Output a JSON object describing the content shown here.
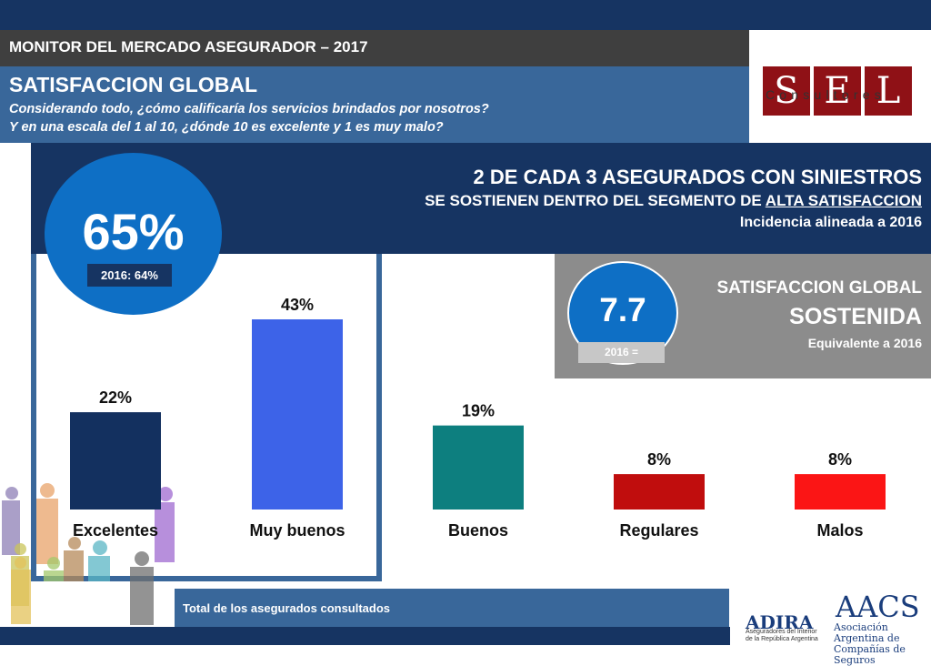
{
  "header": {
    "title": "MONITOR DEL MERCADO ASEGURADOR – 2017"
  },
  "title_bar": {
    "title": "SATISFACCION GLOBAL",
    "question_line1": "Considerando todo, ¿cómo calificaría los servicios brindados por nosotros?",
    "question_line2": "Y en una escala del 1 al 10, ¿dónde 10 es excelente y 1 es muy malo?"
  },
  "logo": {
    "letters": [
      "S",
      "E",
      "L"
    ],
    "subtitle": "Consultores"
  },
  "headline": {
    "line1": "2 DE CADA 3 ASEGURADOS CON SINIESTROS",
    "line2_prefix": "SE SOSTIENEN DENTRO DEL SEGMENTO DE ",
    "line2_underlined": "ALTA SATISFACCION",
    "line3": "Incidencia alineada a 2016"
  },
  "highlight": {
    "value": "65%",
    "comparison": "2016: 64%"
  },
  "score": {
    "value": "7.7",
    "comparison": "2016 =",
    "line1": "SATISFACCION GLOBAL",
    "line2": "SOSTENIDA",
    "line3": "Equivalente a  2016"
  },
  "footer": {
    "text": "Total de los asegurados consultados"
  },
  "partners": {
    "adira": "ADIRA",
    "adira_sub": "Aseguradores del Interior de la República Argentina",
    "aacs": "AACS",
    "aacs_sub_line1": "Asociación Argentina de",
    "aacs_sub_line2": "Compañías de Seguros"
  },
  "colors": {
    "excelentes": "#13305f",
    "muy_buenos": "#3d63e8",
    "buenos": "#0d7f7f",
    "regulares": "#c00d0d",
    "malos": "#fb1515"
  },
  "chart_data": {
    "type": "bar",
    "categories": [
      "Excelentes",
      "Muy buenos",
      "Buenos",
      "Regulares",
      "Malos"
    ],
    "values": [
      22,
      43,
      19,
      8,
      8
    ],
    "value_labels": [
      "22%",
      "43%",
      "19%",
      "8%",
      "8%"
    ],
    "ylim": [
      0,
      43
    ],
    "grid": false
  }
}
